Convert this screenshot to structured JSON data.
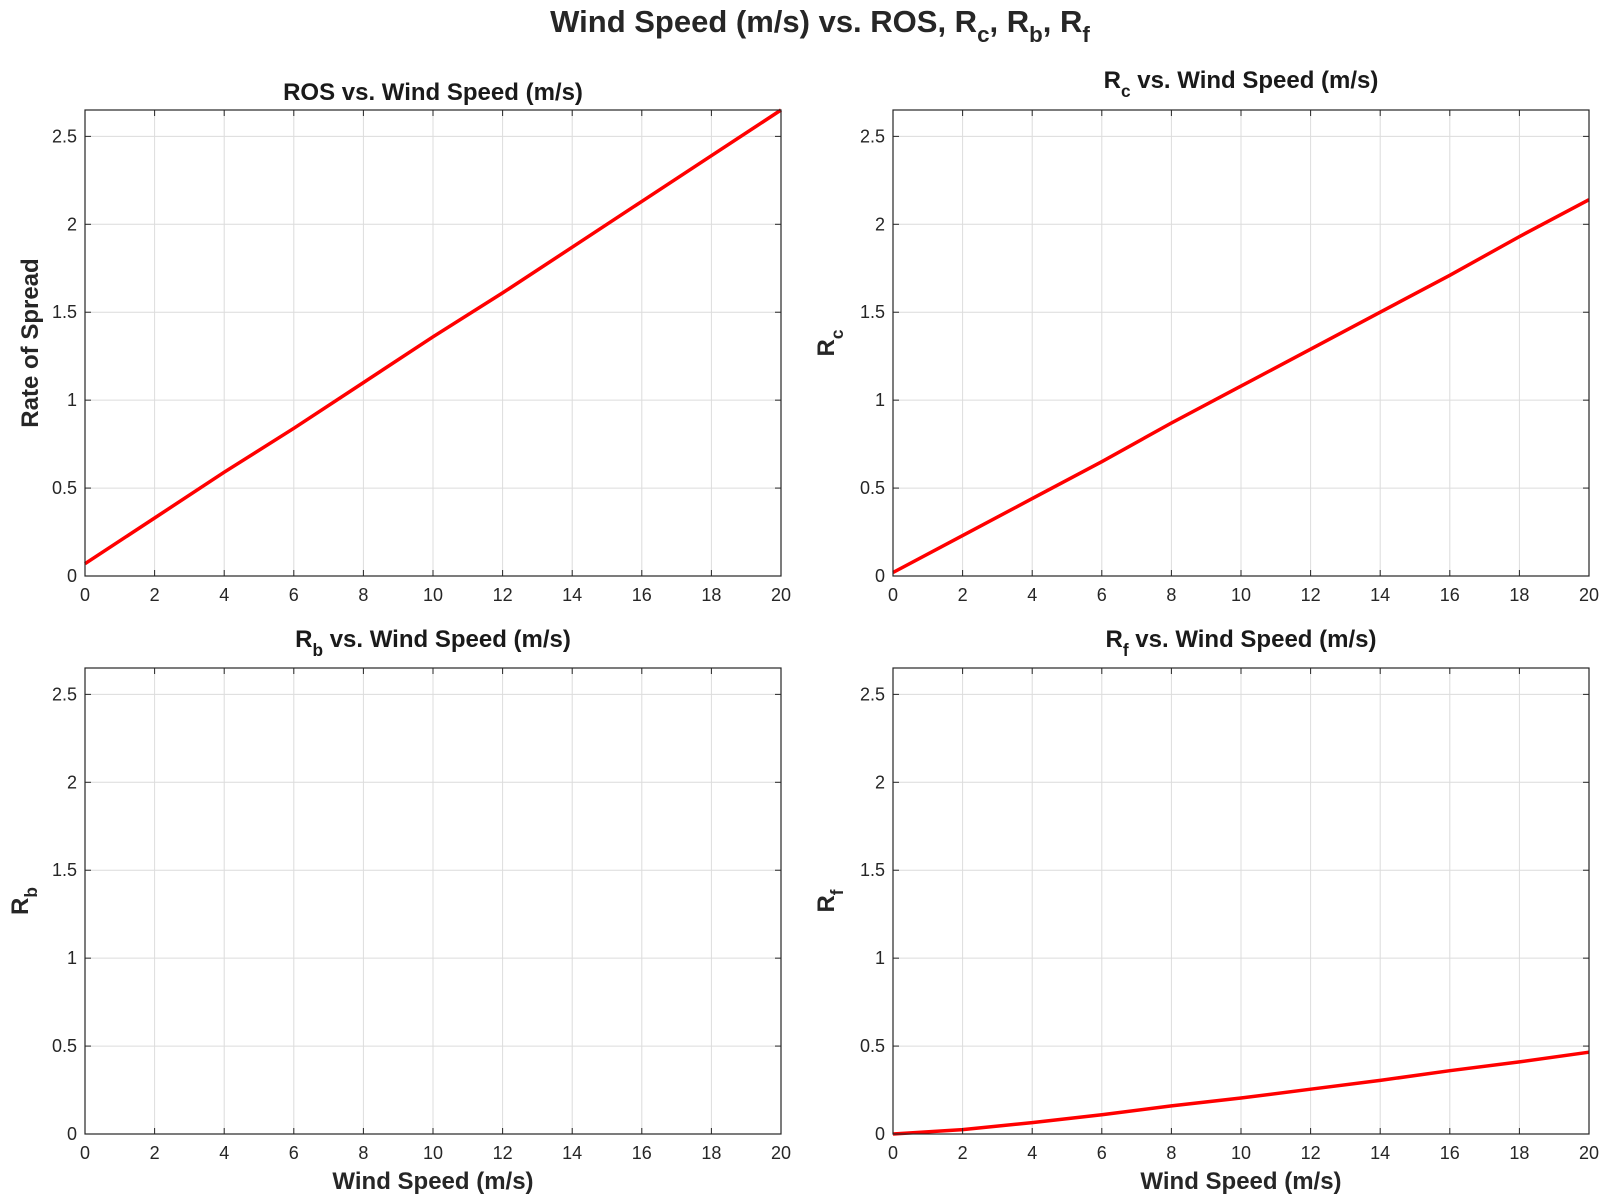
{
  "figure": {
    "suptitle": {
      "main": "Wind Speed (m/s) vs. ROS, R",
      "s1": "c",
      "sep1": ", R",
      "s2": "b",
      "sep2": ", R",
      "s3": "f"
    }
  },
  "chart_data": [
    {
      "type": "line",
      "title": {
        "main": "ROS vs. Wind Speed (m/s)",
        "sub": "",
        "rest": ""
      },
      "ylabel": {
        "main": "Rate of Spread",
        "sub": ""
      },
      "xlabel": "",
      "xlim": [
        0,
        20
      ],
      "ylim": [
        0,
        2.65
      ],
      "xticks": [
        0,
        2,
        4,
        6,
        8,
        10,
        12,
        14,
        16,
        18,
        20
      ],
      "yticks": [
        0,
        0.5,
        1,
        1.5,
        2,
        2.5
      ],
      "grid": true,
      "series": [
        {
          "color": "#ff0000",
          "x": [
            0,
            2,
            4,
            6,
            8,
            10,
            12,
            14,
            16,
            18,
            20
          ],
          "y": [
            0.07,
            0.33,
            0.59,
            0.84,
            1.1,
            1.36,
            1.61,
            1.87,
            2.13,
            2.39,
            2.65
          ]
        }
      ]
    },
    {
      "type": "line",
      "title": {
        "main": "R",
        "sub": "c",
        "rest": " vs. Wind Speed (m/s)"
      },
      "ylabel": {
        "main": "R",
        "sub": "c"
      },
      "xlabel": "",
      "xlim": [
        0,
        20
      ],
      "ylim": [
        0,
        2.65
      ],
      "xticks": [
        0,
        2,
        4,
        6,
        8,
        10,
        12,
        14,
        16,
        18,
        20
      ],
      "yticks": [
        0,
        0.5,
        1,
        1.5,
        2,
        2.5
      ],
      "grid": true,
      "series": [
        {
          "color": "#ff0000",
          "x": [
            0,
            2,
            4,
            6,
            8,
            10,
            12,
            14,
            16,
            18,
            20
          ],
          "y": [
            0.02,
            0.23,
            0.44,
            0.65,
            0.87,
            1.08,
            1.29,
            1.5,
            1.71,
            1.93,
            2.14
          ]
        }
      ]
    },
    {
      "type": "line",
      "title": {
        "main": "R",
        "sub": "b",
        "rest": " vs. Wind Speed (m/s)"
      },
      "ylabel": {
        "main": "R",
        "sub": "b"
      },
      "xlabel": "Wind Speed (m/s)",
      "xlim": [
        0,
        20
      ],
      "ylim": [
        0,
        2.65
      ],
      "xticks": [
        0,
        2,
        4,
        6,
        8,
        10,
        12,
        14,
        16,
        18,
        20
      ],
      "yticks": [
        0,
        0.5,
        1,
        1.5,
        2,
        2.5
      ],
      "grid": true,
      "series": []
    },
    {
      "type": "line",
      "title": {
        "main": "R",
        "sub": "f",
        "rest": " vs. Wind Speed (m/s)"
      },
      "ylabel": {
        "main": "R",
        "sub": "f"
      },
      "xlabel": "Wind Speed (m/s)",
      "xlim": [
        0,
        20
      ],
      "ylim": [
        0,
        2.65
      ],
      "xticks": [
        0,
        2,
        4,
        6,
        8,
        10,
        12,
        14,
        16,
        18,
        20
      ],
      "yticks": [
        0,
        0.5,
        1,
        1.5,
        2,
        2.5
      ],
      "grid": true,
      "series": [
        {
          "color": "#ff0000",
          "x": [
            0,
            2,
            4,
            6,
            8,
            10,
            12,
            14,
            16,
            18,
            20
          ],
          "y": [
            0.0,
            0.025,
            0.065,
            0.11,
            0.16,
            0.205,
            0.255,
            0.305,
            0.36,
            0.41,
            0.465
          ]
        }
      ]
    }
  ]
}
